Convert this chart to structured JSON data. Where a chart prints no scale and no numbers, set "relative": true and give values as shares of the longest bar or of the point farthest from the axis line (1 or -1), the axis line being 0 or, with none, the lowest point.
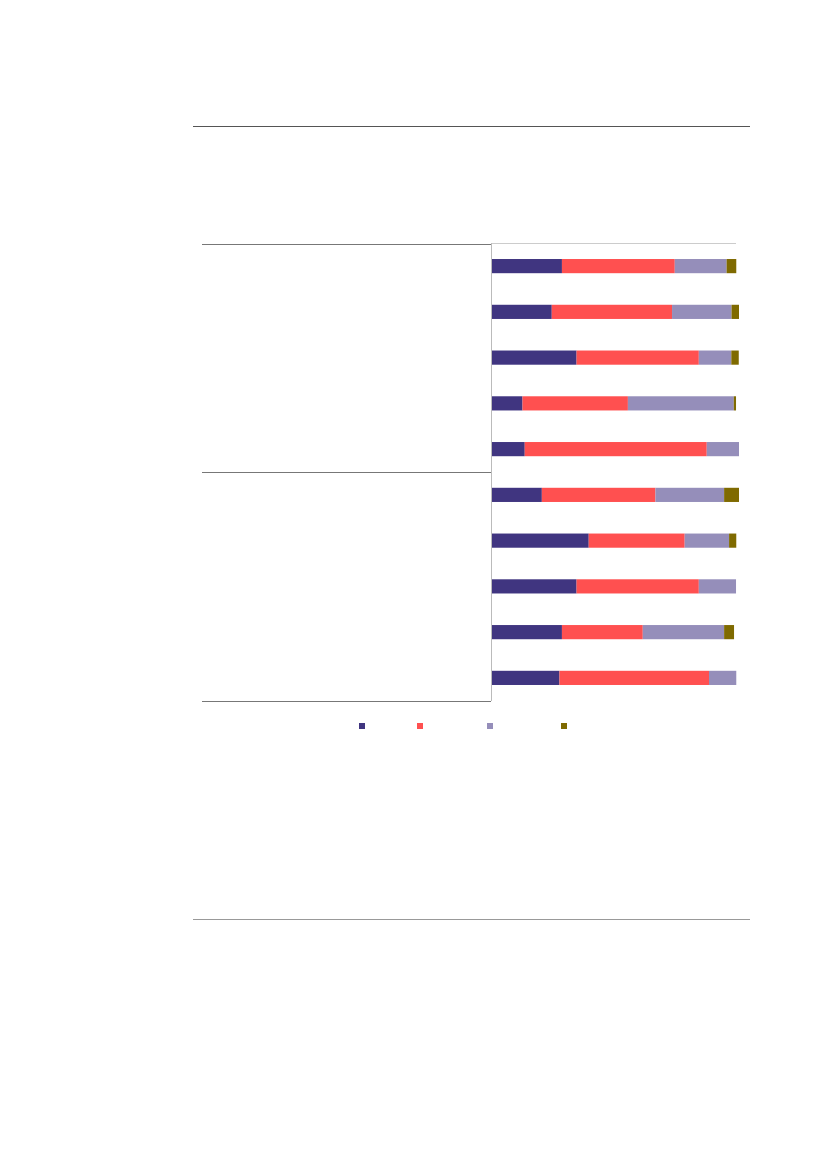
{
  "chart_data": {
    "type": "bar",
    "orientation": "horizontal",
    "stacked": true,
    "relative": true,
    "categories": [
      null,
      null,
      null,
      null,
      null,
      null,
      null,
      null,
      null,
      null
    ],
    "series": [
      {
        "color": "#403580",
        "values": [
          0.286,
          0.245,
          0.345,
          0.127,
          0.136,
          0.205,
          0.394,
          0.345,
          0.286,
          0.276
        ]
      },
      {
        "color": "#ff5050",
        "values": [
          0.455,
          0.485,
          0.493,
          0.425,
          0.734,
          0.458,
          0.387,
          0.493,
          0.326,
          0.603
        ]
      },
      {
        "color": "#958eba",
        "values": [
          0.209,
          0.24,
          0.131,
          0.427,
          0.13,
          0.277,
          0.179,
          0.15,
          0.328,
          0.11
        ]
      },
      {
        "color": "#7f6a00",
        "values": [
          0.039,
          0.03,
          0.03,
          0.009,
          0,
          0.06,
          0.029,
          0,
          0.04,
          0
        ]
      }
    ]
  }
}
